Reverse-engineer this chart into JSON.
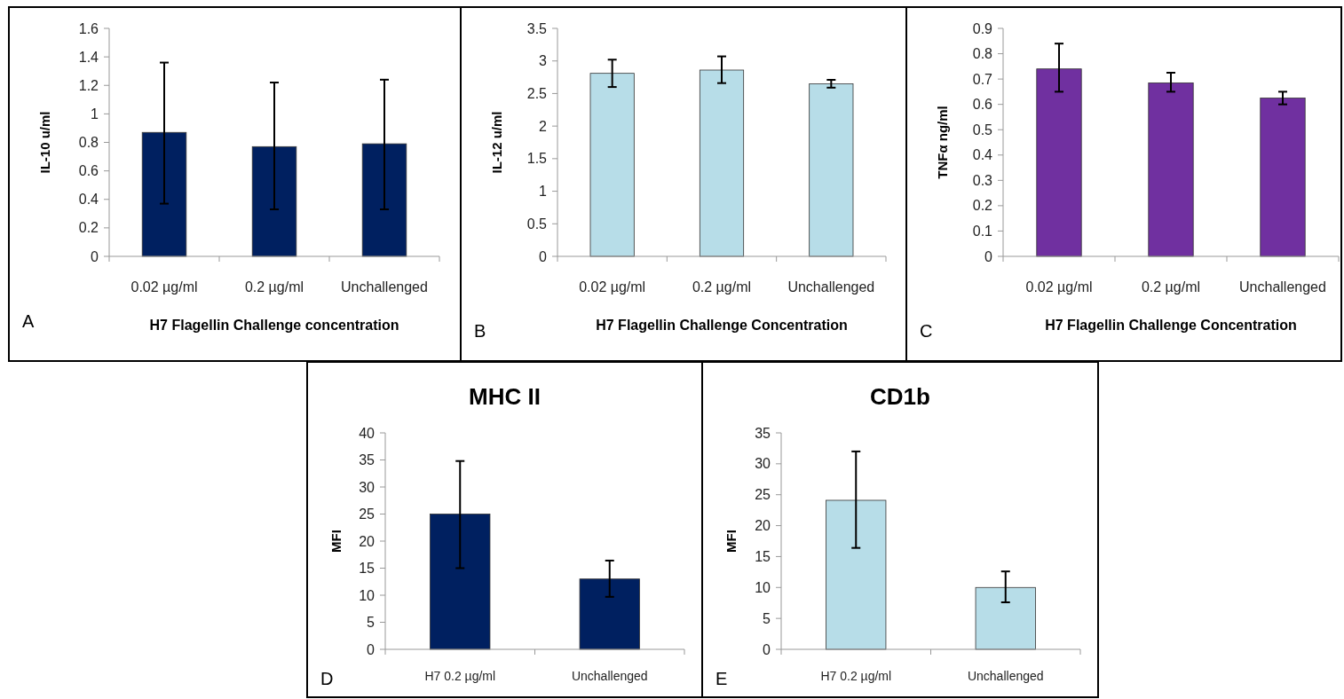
{
  "chart_data": [
    {
      "type": "bar",
      "categories": [
        "0.02 µg/ml",
        "0.2 µg/ml",
        "Unchallenged"
      ],
      "values": [
        0.87,
        0.77,
        0.79
      ],
      "errors": [
        [
          0.37,
          1.36
        ],
        [
          0.33,
          1.22
        ],
        [
          0.33,
          1.24
        ]
      ],
      "color": "#002060",
      "ylim": [
        0,
        1.6
      ],
      "yticks": [
        0,
        0.2,
        0.4,
        0.6,
        0.8,
        {
          "value": 1,
          "label": "1"
        },
        1.2,
        1.4,
        1.6
      ],
      "ylabel": "IL-10 u/ml",
      "xlabel": "H7 Flagellin Challenge concentration",
      "annotations": [
        "A"
      ],
      "grid": false
    },
    {
      "type": "bar",
      "categories": [
        "0.02 µg/ml",
        "0.2 µg/ml",
        "Unchallenged"
      ],
      "values": [
        2.81,
        2.86,
        2.65
      ],
      "errors": [
        [
          2.6,
          3.02
        ],
        [
          2.66,
          3.07
        ],
        [
          2.59,
          2.71
        ]
      ],
      "color": "#b7dde8",
      "ylim": [
        0,
        3.5
      ],
      "yticks": [
        0,
        0.5,
        1,
        1.5,
        2,
        2.5,
        3,
        3.5
      ],
      "ylabel": "IL-12 u/ml",
      "xlabel": "H7 Flagellin Challenge Concentration",
      "annotations": [
        "B"
      ],
      "grid": false
    },
    {
      "type": "bar",
      "categories": [
        "0.02 µg/ml",
        "0.2 µg/ml",
        "Unchallenged"
      ],
      "values": [
        0.74,
        0.685,
        0.625
      ],
      "errors": [
        [
          0.65,
          0.84
        ],
        [
          0.65,
          0.725
        ],
        [
          0.6,
          0.65
        ]
      ],
      "color": "#7030a0",
      "ylim": [
        0,
        0.9
      ],
      "yticks": [
        0,
        0.1,
        0.2,
        0.3,
        0.4,
        0.5,
        0.6,
        0.7,
        0.8,
        0.9
      ],
      "ylabel": "TNFα ng/ml",
      "xlabel": "H7 Flagellin Challenge Concentration",
      "annotations": [
        "C"
      ],
      "grid": false
    },
    {
      "type": "bar",
      "title": "MHC II",
      "categories": [
        "H7 0.2 µg/ml",
        "Unchallenged"
      ],
      "values": [
        25,
        13
      ],
      "errors": [
        [
          15,
          34.8
        ],
        [
          9.7,
          16.4
        ]
      ],
      "color": "#002060",
      "ylim": [
        0,
        40
      ],
      "yticks": [
        0,
        5,
        10,
        15,
        20,
        25,
        30,
        35,
        40
      ],
      "ylabel": "MFI",
      "annotations": [
        "D"
      ],
      "grid": false
    },
    {
      "type": "bar",
      "title": "CD1b",
      "categories": [
        "H7 0.2 µg/ml",
        "Unchallenged"
      ],
      "values": [
        24.1,
        10
      ],
      "errors": [
        [
          16.4,
          32
        ],
        [
          7.6,
          12.6
        ]
      ],
      "color": "#b7dde8",
      "ylim": [
        0,
        35
      ],
      "yticks": [
        0,
        5,
        10,
        15,
        20,
        25,
        30,
        35
      ],
      "ylabel": "MFI",
      "annotations": [
        "E"
      ],
      "grid": false
    }
  ]
}
